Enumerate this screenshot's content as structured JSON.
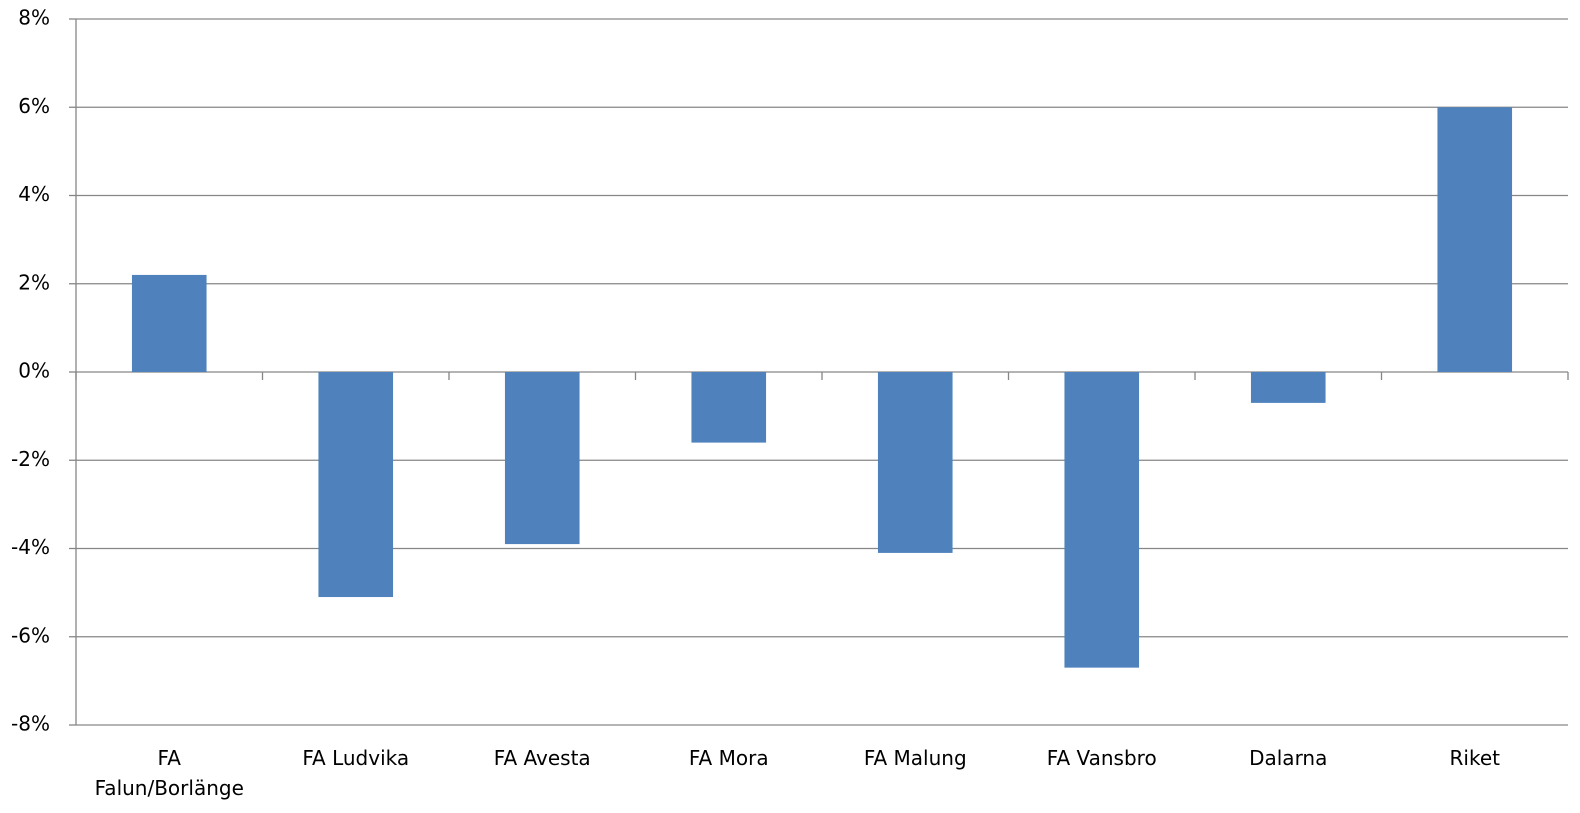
{
  "chart_data": {
    "type": "bar",
    "categories": [
      "FA Falun/Borlänge",
      "FA Ludvika",
      "FA Avesta",
      "FA Mora",
      "FA Malung",
      "FA Vansbro",
      "Dalarna",
      "Riket"
    ],
    "values": [
      2.2,
      -5.1,
      -3.9,
      -1.6,
      -4.1,
      -6.7,
      -0.7,
      6.0
    ],
    "color": "#4f81bd",
    "ylim": [
      -8,
      8
    ],
    "yticks": [
      {
        "value": -8,
        "label": "-8%"
      },
      {
        "value": -6,
        "label": "-6%"
      },
      {
        "value": -4,
        "label": "-4%"
      },
      {
        "value": -2,
        "label": "-2%"
      },
      {
        "value": 0,
        "label": "0%"
      },
      {
        "value": 2,
        "label": "2%"
      },
      {
        "value": 4,
        "label": "4%"
      },
      {
        "value": 6,
        "label": "6%"
      },
      {
        "value": 8,
        "label": "8%"
      }
    ],
    "grid": true
  }
}
